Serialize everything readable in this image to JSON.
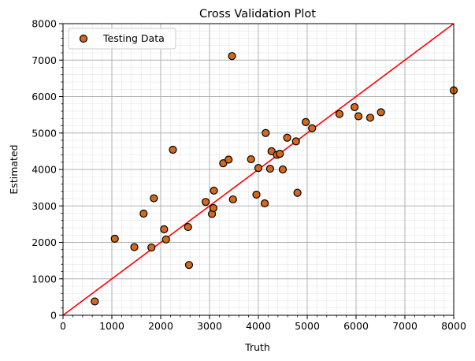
{
  "chart_data": {
    "type": "scatter",
    "title": "Cross Validation Plot",
    "xlabel": "Truth",
    "ylabel": "Estimated",
    "xlim": [
      0,
      8000
    ],
    "ylim": [
      0,
      8000
    ],
    "xticks": [
      "0",
      "1000",
      "2000",
      "3000",
      "4000",
      "5000",
      "6000",
      "7000",
      "8000"
    ],
    "yticks": [
      "0",
      "1000",
      "2000",
      "3000",
      "4000",
      "5000",
      "6000",
      "7000",
      "8000"
    ],
    "grid": true,
    "minor_grid": true,
    "legend_position": "upper-left",
    "reference_line": {
      "from": [
        0,
        0
      ],
      "to": [
        8000,
        8000
      ],
      "color": "#ff0000"
    },
    "series": [
      {
        "name": "Testing Data",
        "color": "#d2691e",
        "edge_color": "#000000",
        "points": [
          [
            650,
            380
          ],
          [
            1060,
            2100
          ],
          [
            1460,
            1870
          ],
          [
            1650,
            2790
          ],
          [
            1810,
            1860
          ],
          [
            1860,
            3210
          ],
          [
            2070,
            2360
          ],
          [
            2110,
            2080
          ],
          [
            2250,
            4540
          ],
          [
            2560,
            2420
          ],
          [
            2580,
            1380
          ],
          [
            2920,
            3110
          ],
          [
            3050,
            2780
          ],
          [
            3080,
            2940
          ],
          [
            3090,
            3420
          ],
          [
            3280,
            4170
          ],
          [
            3390,
            4270
          ],
          [
            3460,
            7110
          ],
          [
            3480,
            3180
          ],
          [
            3850,
            4280
          ],
          [
            3960,
            3310
          ],
          [
            4000,
            4040
          ],
          [
            4130,
            3070
          ],
          [
            4150,
            5000
          ],
          [
            4240,
            4020
          ],
          [
            4270,
            4500
          ],
          [
            4380,
            4400
          ],
          [
            4440,
            4430
          ],
          [
            4500,
            4000
          ],
          [
            4590,
            4870
          ],
          [
            4770,
            4770
          ],
          [
            4800,
            3360
          ],
          [
            4970,
            5300
          ],
          [
            5100,
            5130
          ],
          [
            5660,
            5520
          ],
          [
            5970,
            5710
          ],
          [
            6050,
            5460
          ],
          [
            6290,
            5420
          ],
          [
            6510,
            5570
          ],
          [
            8000,
            6170
          ]
        ]
      }
    ]
  }
}
